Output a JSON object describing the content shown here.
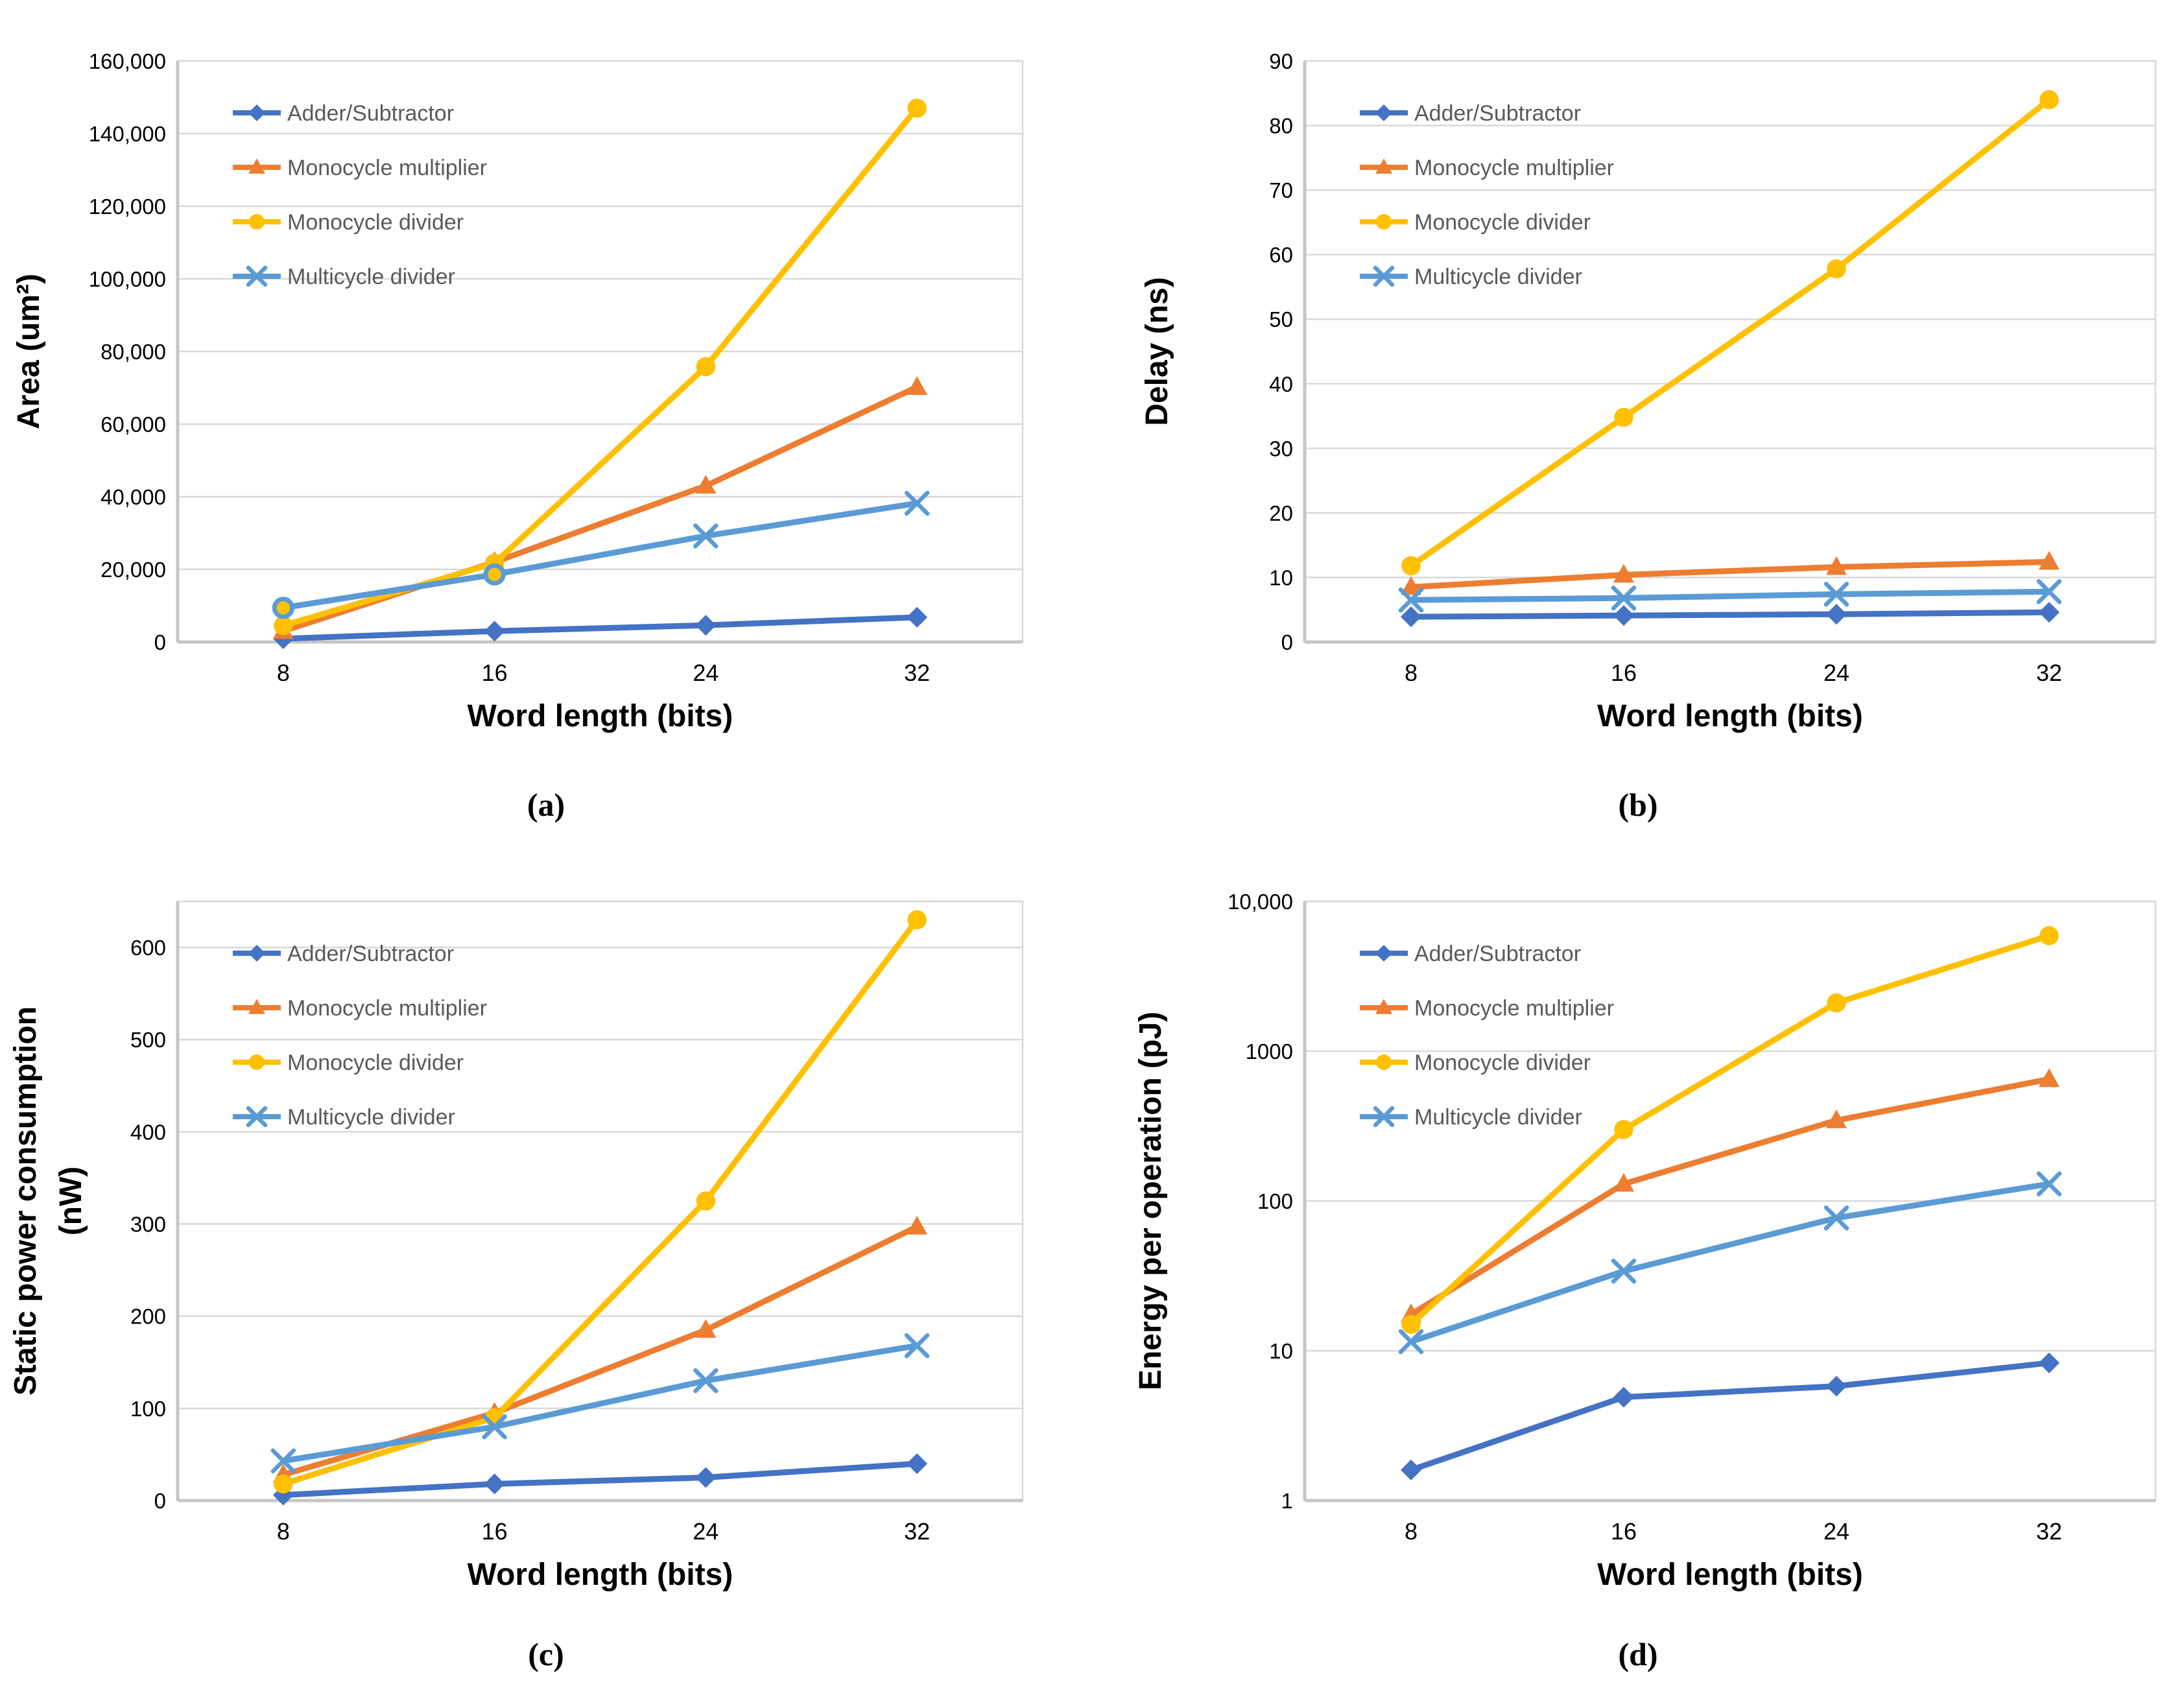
{
  "figure": {
    "background": "#ffffff",
    "grid_color": "#D9D9D9",
    "axis_color": "#C6C6C6",
    "tick_text_color": "#000000",
    "legend_text_color": "#595959"
  },
  "legend_labels": [
    "Adder/Subtractor",
    "Monocycle multiplier",
    "Monocycle divider",
    "Multicycle divider"
  ],
  "chart_data": [
    {
      "id": "a",
      "caption": "(a)",
      "type": "line",
      "xlabel": "Word length (bits)",
      "ylabel": "Area (um²)",
      "ylabel2": "",
      "x_categories": [
        "8",
        "16",
        "24",
        "32"
      ],
      "grid": true,
      "legend_position": "top-left-inside",
      "y_axis": {
        "scale": "linear",
        "min": 0,
        "max": 160000,
        "ticks": [
          {
            "v": 160000,
            "label": "160,000"
          },
          {
            "v": 140000,
            "label": "140,000"
          },
          {
            "v": 120000,
            "label": "120,000"
          },
          {
            "v": 100000,
            "label": "100,000"
          },
          {
            "v": 80000,
            "label": "80,000"
          },
          {
            "v": 60000,
            "label": "60,000"
          },
          {
            "v": 40000,
            "label": "40,000"
          },
          {
            "v": 20000,
            "label": "20,000"
          },
          {
            "v": 0,
            "label": "0"
          }
        ]
      },
      "series": [
        {
          "name": "Adder/Subtractor",
          "color": "#4472C4",
          "marker": "diamond",
          "values": [
            900,
            3000,
            4600,
            6800
          ]
        },
        {
          "name": "Monocycle multiplier",
          "color": "#ED7D31",
          "marker": "triangle",
          "values": [
            3000,
            22000,
            43000,
            70200
          ]
        },
        {
          "name": "Monocycle divider",
          "color": "#FFC000",
          "marker": "circle",
          "values": [
            4500,
            21700,
            75800,
            147000
          ]
        },
        {
          "name": "Multicycle divider",
          "color": "#5B9BD5",
          "marker": "x",
          "values": [
            9400,
            18600,
            29200,
            38200
          ],
          "point_markers": [
            "ring",
            "ring",
            "x",
            "x"
          ]
        }
      ]
    },
    {
      "id": "b",
      "caption": "(b)",
      "type": "line",
      "xlabel": "Word length (bits)",
      "ylabel": "Delay (ns)",
      "ylabel2": "",
      "x_categories": [
        "8",
        "16",
        "24",
        "32"
      ],
      "grid": true,
      "legend_position": "top-left-inside",
      "y_axis": {
        "scale": "linear",
        "min": 0,
        "max": 90,
        "ticks": [
          {
            "v": 90,
            "label": "90"
          },
          {
            "v": 80,
            "label": "80"
          },
          {
            "v": 70,
            "label": "70"
          },
          {
            "v": 60,
            "label": "60"
          },
          {
            "v": 50,
            "label": "50"
          },
          {
            "v": 40,
            "label": "40"
          },
          {
            "v": 30,
            "label": "30"
          },
          {
            "v": 20,
            "label": "20"
          },
          {
            "v": 10,
            "label": "10"
          },
          {
            "v": 0,
            "label": "0"
          }
        ]
      },
      "series": [
        {
          "name": "Adder/Subtractor",
          "color": "#4472C4",
          "marker": "diamond",
          "values": [
            3.9,
            4.1,
            4.3,
            4.6
          ]
        },
        {
          "name": "Monocycle multiplier",
          "color": "#ED7D31",
          "marker": "triangle",
          "values": [
            8.5,
            10.4,
            11.6,
            12.4
          ]
        },
        {
          "name": "Monocycle divider",
          "color": "#FFC000",
          "marker": "circle",
          "values": [
            11.8,
            34.8,
            57.8,
            84.0
          ]
        },
        {
          "name": "Multicycle divider",
          "color": "#5B9BD5",
          "marker": "x",
          "values": [
            6.5,
            6.8,
            7.4,
            7.8
          ]
        }
      ]
    },
    {
      "id": "c",
      "caption": "(c)",
      "type": "line",
      "xlabel": "Word length (bits)",
      "ylabel": "Static power consumption",
      "ylabel2": "(nW)",
      "x_categories": [
        "8",
        "16",
        "24",
        "32"
      ],
      "grid": true,
      "legend_position": "top-left-inside",
      "y_axis": {
        "scale": "linear",
        "min": 0,
        "max": 650,
        "ticks": [
          {
            "v": 600,
            "label": "600"
          },
          {
            "v": 500,
            "label": "500"
          },
          {
            "v": 400,
            "label": "400"
          },
          {
            "v": 300,
            "label": "300"
          },
          {
            "v": 200,
            "label": "200"
          },
          {
            "v": 100,
            "label": "100"
          },
          {
            "v": 0,
            "label": "0"
          }
        ]
      },
      "series": [
        {
          "name": "Adder/Subtractor",
          "color": "#4472C4",
          "marker": "diamond",
          "values": [
            6,
            18,
            25,
            40
          ]
        },
        {
          "name": "Monocycle multiplier",
          "color": "#ED7D31",
          "marker": "triangle",
          "values": [
            28,
            95,
            185,
            297
          ]
        },
        {
          "name": "Monocycle divider",
          "color": "#FFC000",
          "marker": "circle",
          "values": [
            18,
            90,
            325,
            630
          ]
        },
        {
          "name": "Multicycle divider",
          "color": "#5B9BD5",
          "marker": "x",
          "values": [
            43,
            80,
            130,
            168
          ]
        }
      ]
    },
    {
      "id": "d",
      "caption": "(d)",
      "type": "line",
      "xlabel": "Word length (bits)",
      "ylabel": "Energy per operation (pJ)",
      "ylabel2": "",
      "x_categories": [
        "8",
        "16",
        "24",
        "32"
      ],
      "grid": true,
      "legend_position": "top-left-inside",
      "y_axis": {
        "scale": "log",
        "min": 1,
        "max": 10000,
        "ticks": [
          {
            "v": 10000,
            "label": "10,000"
          },
          {
            "v": 1000,
            "label": "1000"
          },
          {
            "v": 100,
            "label": "100"
          },
          {
            "v": 10,
            "label": "10"
          },
          {
            "v": 1,
            "label": "1"
          }
        ]
      },
      "series": [
        {
          "name": "Adder/Subtractor",
          "color": "#4472C4",
          "marker": "diamond",
          "values": [
            1.6,
            4.9,
            5.8,
            8.3
          ]
        },
        {
          "name": "Monocycle multiplier",
          "color": "#ED7D31",
          "marker": "triangle",
          "values": [
            17.5,
            130,
            345,
            650
          ]
        },
        {
          "name": "Monocycle divider",
          "color": "#FFC000",
          "marker": "circle",
          "values": [
            15,
            300,
            2100,
            5900
          ]
        },
        {
          "name": "Multicycle divider",
          "color": "#5B9BD5",
          "marker": "x",
          "values": [
            11.5,
            34,
            77,
            130
          ]
        }
      ]
    }
  ]
}
